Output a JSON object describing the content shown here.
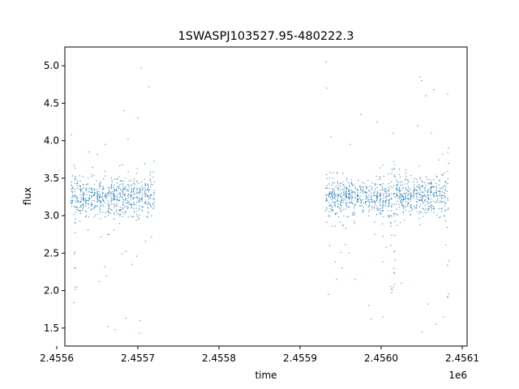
{
  "chart_data": {
    "type": "scatter",
    "title": "1SWASPJ103527.95-480222.3",
    "xlabel": "time",
    "ylabel": "flux",
    "x_offset_label": "1e6",
    "xlim": [
      2.45561,
      2.456106
    ],
    "ylim": [
      1.26,
      5.25
    ],
    "x_ticks": [
      2.4556,
      2.4557,
      2.4558,
      2.4559,
      2.456,
      2.4561
    ],
    "x_tick_labels": [
      "2.4556",
      "2.4557",
      "2.4558",
      "2.4559",
      "2.4560",
      "2.4561"
    ],
    "y_ticks": [
      1.5,
      2.0,
      2.5,
      3.0,
      3.5,
      4.0,
      4.5,
      5.0
    ],
    "y_tick_labels": [
      "1.5",
      "2.0",
      "2.5",
      "3.0",
      "3.5",
      "4.0",
      "4.5",
      "5.0"
    ],
    "grid": false,
    "marker_color": "#1f77b4",
    "series": [
      {
        "segments": [
          {
            "x_start": 2.455617,
            "x_end": 2.455721
          },
          {
            "x_start": 2.455931,
            "x_end": 2.456084
          }
        ],
        "typical_flux_range": [
          3.0,
          3.5
        ],
        "typical_flux_center": 3.25,
        "points": [
          {
            "x": 2.455618,
            "y": 4.08
          },
          {
            "x": 2.455622,
            "y": 2.3
          },
          {
            "x": 2.455625,
            "y": 2.05
          },
          {
            "x": 2.45564,
            "y": 3.85
          },
          {
            "x": 2.455652,
            "y": 2.12
          },
          {
            "x": 2.45566,
            "y": 3.95
          },
          {
            "x": 2.455663,
            "y": 1.52
          },
          {
            "x": 2.455672,
            "y": 1.48
          },
          {
            "x": 2.455685,
            "y": 1.63
          },
          {
            "x": 2.455683,
            "y": 4.4
          },
          {
            "x": 2.455688,
            "y": 4.02
          },
          {
            "x": 2.455693,
            "y": 2.35
          },
          {
            "x": 2.4557,
            "y": 4.3
          },
          {
            "x": 2.455703,
            "y": 1.6
          },
          {
            "x": 2.455702,
            "y": 1.43
          },
          {
            "x": 2.455704,
            "y": 4.97
          },
          {
            "x": 2.455714,
            "y": 4.72
          },
          {
            "x": 2.455719,
            "y": 3.58
          },
          {
            "x": 2.455932,
            "y": 5.05
          },
          {
            "x": 2.455933,
            "y": 4.7
          },
          {
            "x": 2.455938,
            "y": 4.05
          },
          {
            "x": 2.455935,
            "y": 1.95
          },
          {
            "x": 2.455945,
            "y": 2.15
          },
          {
            "x": 2.455952,
            "y": 2.3
          },
          {
            "x": 2.455962,
            "y": 3.95
          },
          {
            "x": 2.455968,
            "y": 2.15
          },
          {
            "x": 2.455975,
            "y": 4.35
          },
          {
            "x": 2.455985,
            "y": 1.8
          },
          {
            "x": 2.455988,
            "y": 1.62
          },
          {
            "x": 2.455995,
            "y": 4.25
          },
          {
            "x": 2.456002,
            "y": 1.65
          },
          {
            "x": 2.456015,
            "y": 4.1
          },
          {
            "x": 2.456025,
            "y": 2.1
          },
          {
            "x": 2.456045,
            "y": 4.2
          },
          {
            "x": 2.456048,
            "y": 4.85
          },
          {
            "x": 2.45605,
            "y": 4.8
          },
          {
            "x": 2.456055,
            "y": 4.6
          },
          {
            "x": 2.45605,
            "y": 1.45
          },
          {
            "x": 2.456058,
            "y": 1.82
          },
          {
            "x": 2.456062,
            "y": 4.1
          },
          {
            "x": 2.456065,
            "y": 4.68
          },
          {
            "x": 2.456068,
            "y": 1.55
          },
          {
            "x": 2.456077,
            "y": 1.65
          },
          {
            "x": 2.456082,
            "y": 4.62
          },
          {
            "x": 2.456083,
            "y": 3.9
          }
        ]
      }
    ]
  }
}
